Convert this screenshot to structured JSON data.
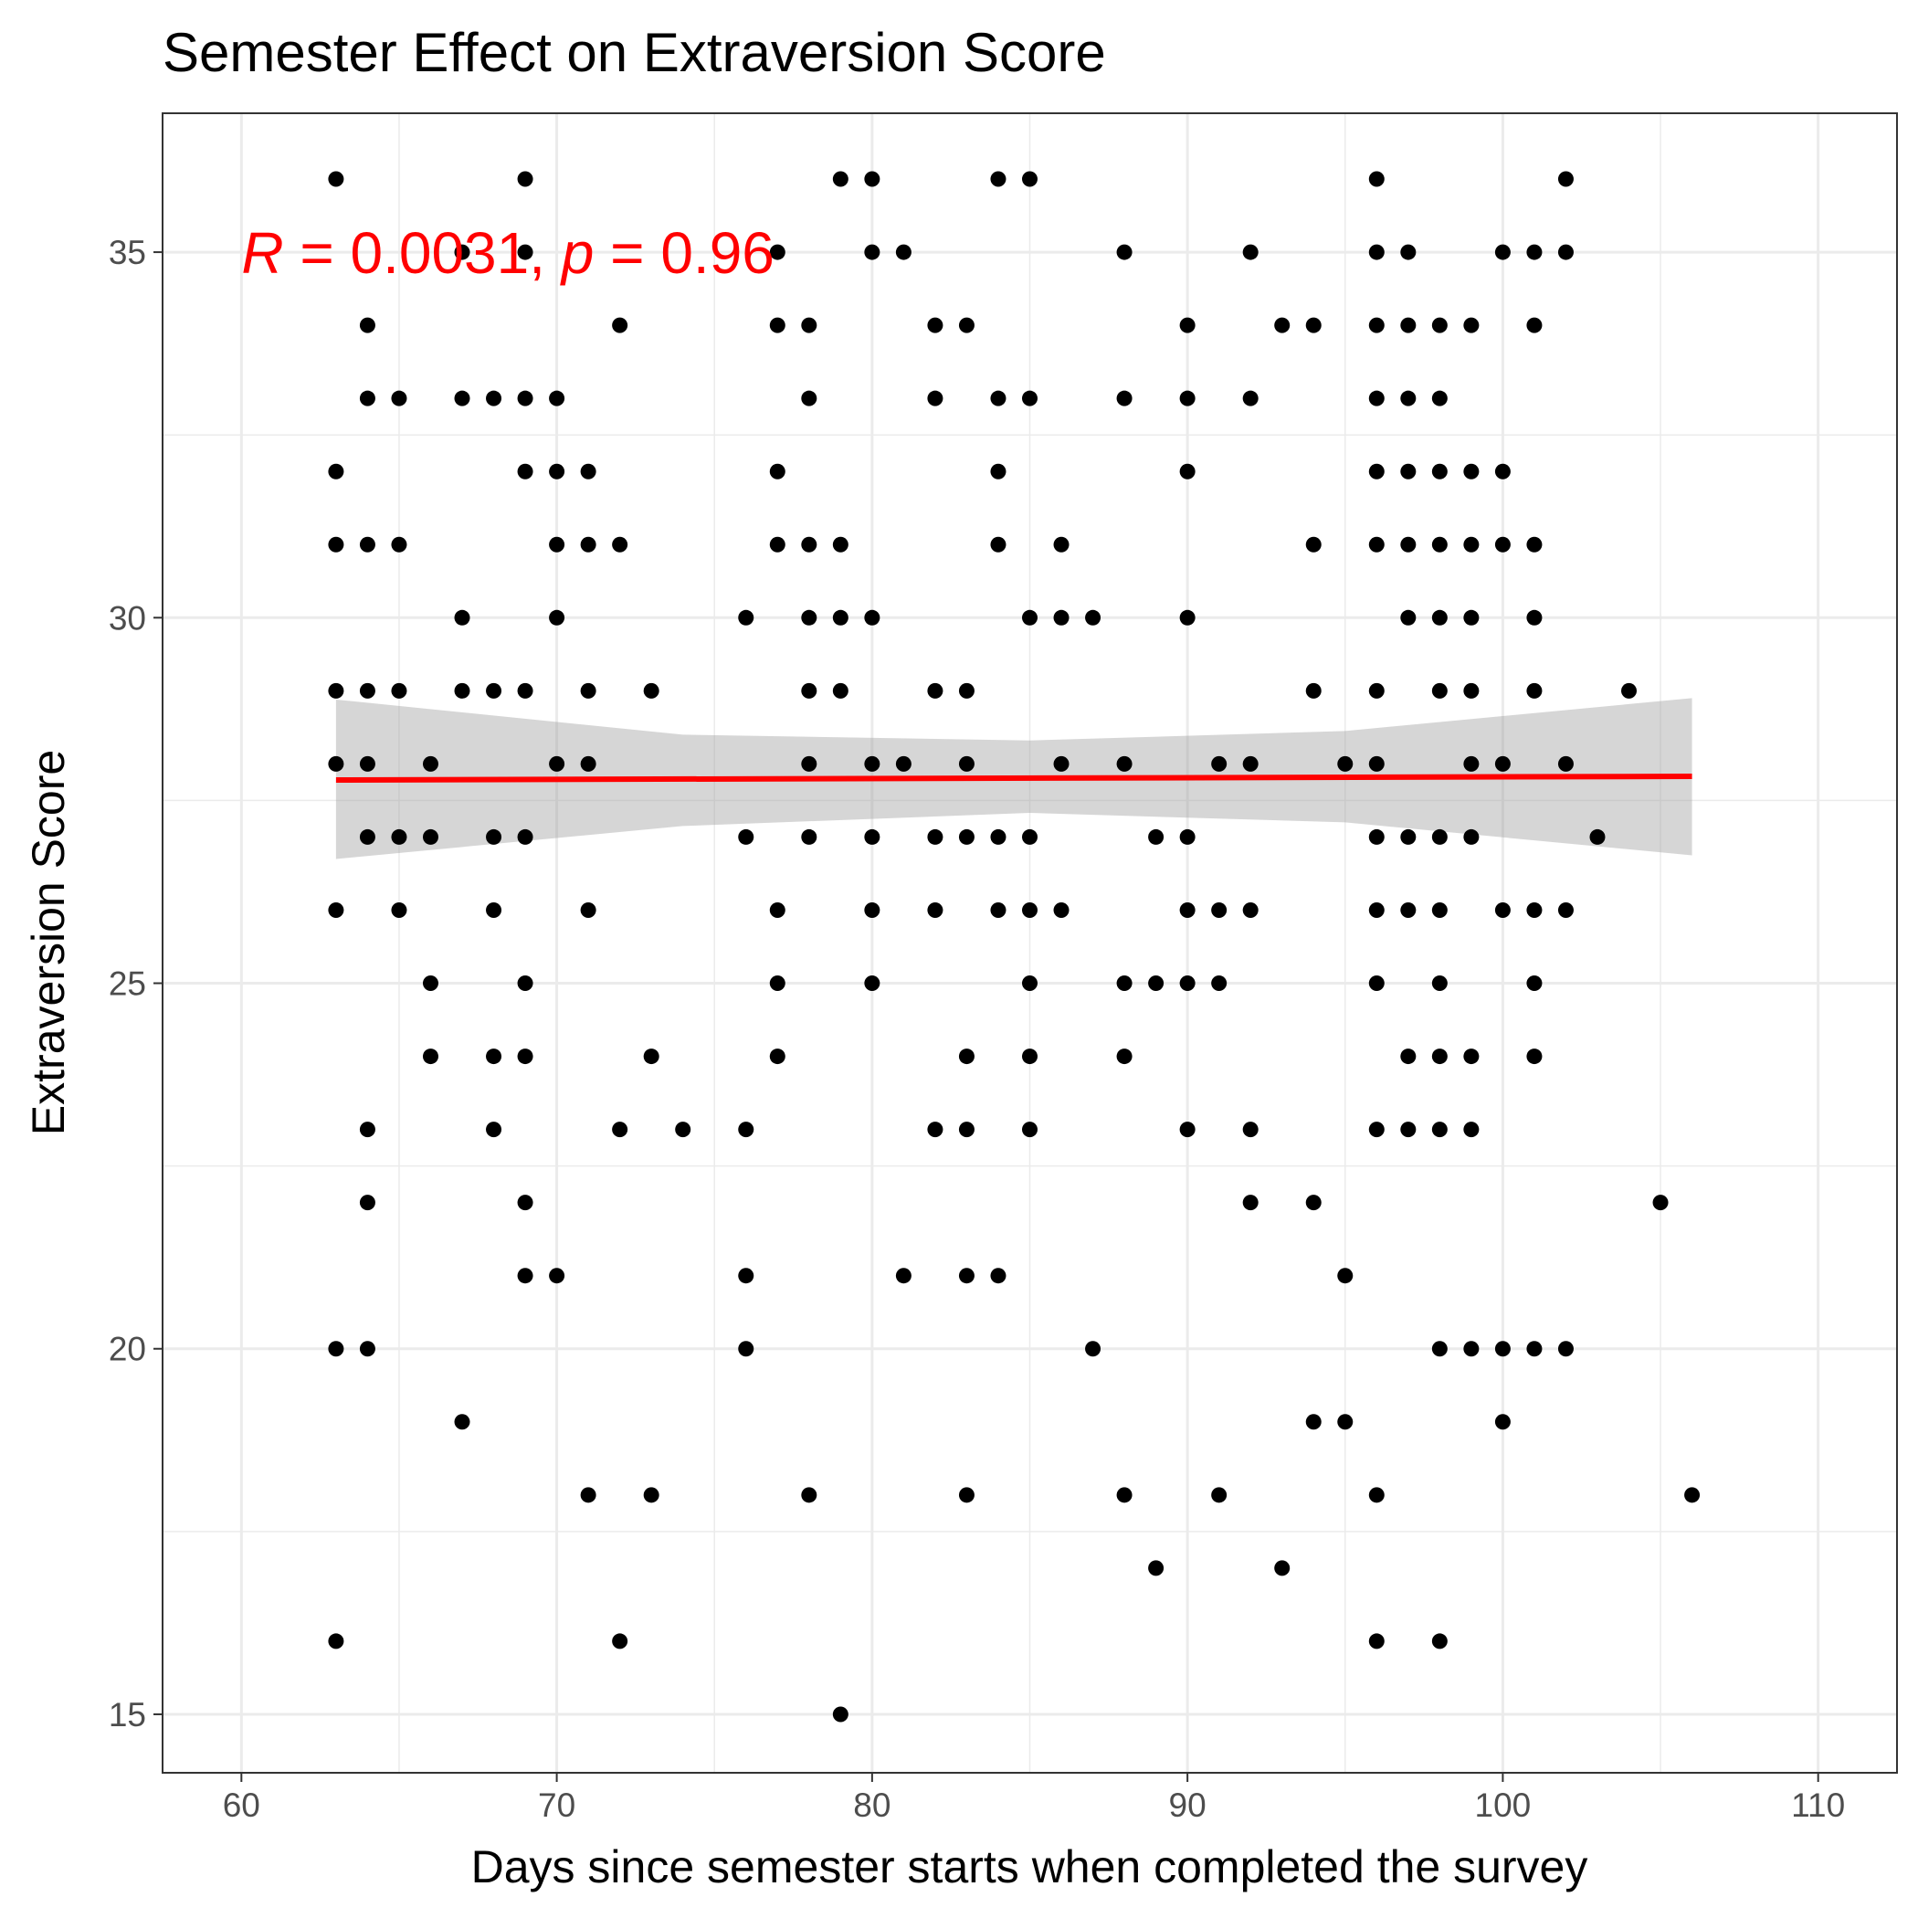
{
  "chart_data": {
    "type": "scatter",
    "title": "Semester Effect on Extraversion Score",
    "xlabel": "Days since semester starts when completed the survey",
    "ylabel": "Extraversion Score",
    "xlim": [
      57.5,
      112.5
    ],
    "ylim": [
      14.2,
      36.9
    ],
    "x_ticks": [
      "60",
      "70",
      "80",
      "90",
      "100",
      "110"
    ],
    "y_ticks": [
      "15",
      "20",
      "25",
      "30",
      "35"
    ],
    "grid": true,
    "annotation": {
      "r_symbol": "R",
      "r_text": " = 0.0031, ",
      "p_symbol": "p",
      "p_text": " = 0.96",
      "color": "#ff0000",
      "x": 60,
      "y": 35
    },
    "trend": {
      "x": [
        63,
        106
      ],
      "y": [
        27.78,
        27.83
      ],
      "color": "#ff0000",
      "band_x": [
        63,
        74,
        85,
        95,
        106
      ],
      "band_upper": [
        28.88,
        28.4,
        28.32,
        28.45,
        28.9
      ],
      "band_lower": [
        26.7,
        27.15,
        27.33,
        27.2,
        26.75
      ],
      "band_color": "#999999"
    },
    "points": [
      [
        63,
        36
      ],
      [
        63,
        32
      ],
      [
        63,
        31
      ],
      [
        63,
        29
      ],
      [
        63,
        28
      ],
      [
        63,
        26
      ],
      [
        63,
        20
      ],
      [
        63,
        16
      ],
      [
        64,
        34
      ],
      [
        64,
        33
      ],
      [
        64,
        31
      ],
      [
        64,
        29
      ],
      [
        64,
        28
      ],
      [
        64,
        27
      ],
      [
        64,
        23
      ],
      [
        64,
        22
      ],
      [
        64,
        20
      ],
      [
        65,
        33
      ],
      [
        65,
        31
      ],
      [
        65,
        29
      ],
      [
        65,
        27
      ],
      [
        65,
        26
      ],
      [
        66,
        28
      ],
      [
        66,
        27
      ],
      [
        66,
        25
      ],
      [
        66,
        24
      ],
      [
        67,
        35
      ],
      [
        67,
        33
      ],
      [
        67,
        30
      ],
      [
        67,
        29
      ],
      [
        67,
        19
      ],
      [
        68,
        33
      ],
      [
        68,
        29
      ],
      [
        68,
        27
      ],
      [
        68,
        26
      ],
      [
        68,
        24
      ],
      [
        68,
        23
      ],
      [
        69,
        36
      ],
      [
        69,
        35
      ],
      [
        69,
        33
      ],
      [
        69,
        32
      ],
      [
        69,
        29
      ],
      [
        69,
        27
      ],
      [
        69,
        25
      ],
      [
        69,
        24
      ],
      [
        69,
        22
      ],
      [
        69,
        21
      ],
      [
        70,
        33
      ],
      [
        70,
        32
      ],
      [
        70,
        31
      ],
      [
        70,
        30
      ],
      [
        70,
        28
      ],
      [
        70,
        21
      ],
      [
        71,
        32
      ],
      [
        71,
        31
      ],
      [
        71,
        29
      ],
      [
        71,
        28
      ],
      [
        71,
        26
      ],
      [
        71,
        18
      ],
      [
        72,
        34
      ],
      [
        72,
        31
      ],
      [
        72,
        23
      ],
      [
        72,
        16
      ],
      [
        73,
        29
      ],
      [
        73,
        24
      ],
      [
        73,
        18
      ],
      [
        74,
        23
      ],
      [
        76,
        30
      ],
      [
        76,
        27
      ],
      [
        76,
        23
      ],
      [
        76,
        21
      ],
      [
        76,
        20
      ],
      [
        77,
        35
      ],
      [
        77,
        34
      ],
      [
        77,
        32
      ],
      [
        77,
        31
      ],
      [
        77,
        26
      ],
      [
        77,
        25
      ],
      [
        77,
        24
      ],
      [
        78,
        34
      ],
      [
        78,
        33
      ],
      [
        78,
        31
      ],
      [
        78,
        30
      ],
      [
        78,
        29
      ],
      [
        78,
        28
      ],
      [
        78,
        27
      ],
      [
        78,
        18
      ],
      [
        79,
        36
      ],
      [
        79,
        31
      ],
      [
        79,
        30
      ],
      [
        79,
        29
      ],
      [
        79,
        15
      ],
      [
        80,
        36
      ],
      [
        80,
        35
      ],
      [
        80,
        30
      ],
      [
        80,
        28
      ],
      [
        80,
        27
      ],
      [
        80,
        26
      ],
      [
        80,
        25
      ],
      [
        81,
        35
      ],
      [
        81,
        28
      ],
      [
        81,
        21
      ],
      [
        82,
        34
      ],
      [
        82,
        33
      ],
      [
        82,
        29
      ],
      [
        82,
        27
      ],
      [
        82,
        26
      ],
      [
        82,
        23
      ],
      [
        83,
        34
      ],
      [
        83,
        29
      ],
      [
        83,
        28
      ],
      [
        83,
        27
      ],
      [
        83,
        24
      ],
      [
        83,
        23
      ],
      [
        83,
        21
      ],
      [
        83,
        18
      ],
      [
        84,
        36
      ],
      [
        84,
        33
      ],
      [
        84,
        32
      ],
      [
        84,
        31
      ],
      [
        84,
        27
      ],
      [
        84,
        26
      ],
      [
        84,
        21
      ],
      [
        85,
        36
      ],
      [
        85,
        33
      ],
      [
        85,
        30
      ],
      [
        85,
        27
      ],
      [
        85,
        26
      ],
      [
        85,
        25
      ],
      [
        85,
        24
      ],
      [
        85,
        23
      ],
      [
        86,
        31
      ],
      [
        86,
        30
      ],
      [
        86,
        28
      ],
      [
        86,
        26
      ],
      [
        87,
        30
      ],
      [
        87,
        20
      ],
      [
        88,
        35
      ],
      [
        88,
        33
      ],
      [
        88,
        28
      ],
      [
        88,
        25
      ],
      [
        88,
        24
      ],
      [
        88,
        18
      ],
      [
        89,
        27
      ],
      [
        89,
        25
      ],
      [
        89,
        17
      ],
      [
        90,
        34
      ],
      [
        90,
        33
      ],
      [
        90,
        32
      ],
      [
        90,
        30
      ],
      [
        90,
        27
      ],
      [
        90,
        26
      ],
      [
        90,
        25
      ],
      [
        90,
        23
      ],
      [
        91,
        28
      ],
      [
        91,
        26
      ],
      [
        91,
        25
      ],
      [
        91,
        18
      ],
      [
        92,
        35
      ],
      [
        92,
        33
      ],
      [
        92,
        28
      ],
      [
        92,
        26
      ],
      [
        92,
        23
      ],
      [
        92,
        22
      ],
      [
        93,
        34
      ],
      [
        93,
        17
      ],
      [
        94,
        34
      ],
      [
        94,
        31
      ],
      [
        94,
        29
      ],
      [
        94,
        22
      ],
      [
        94,
        19
      ],
      [
        95,
        28
      ],
      [
        95,
        21
      ],
      [
        95,
        19
      ],
      [
        96,
        36
      ],
      [
        96,
        35
      ],
      [
        96,
        34
      ],
      [
        96,
        33
      ],
      [
        96,
        32
      ],
      [
        96,
        31
      ],
      [
        96,
        29
      ],
      [
        96,
        28
      ],
      [
        96,
        27
      ],
      [
        96,
        26
      ],
      [
        96,
        25
      ],
      [
        96,
        23
      ],
      [
        96,
        18
      ],
      [
        96,
        16
      ],
      [
        97,
        35
      ],
      [
        97,
        34
      ],
      [
        97,
        33
      ],
      [
        97,
        32
      ],
      [
        97,
        31
      ],
      [
        97,
        30
      ],
      [
        97,
        27
      ],
      [
        97,
        26
      ],
      [
        97,
        24
      ],
      [
        97,
        23
      ],
      [
        98,
        34
      ],
      [
        98,
        33
      ],
      [
        98,
        32
      ],
      [
        98,
        31
      ],
      [
        98,
        30
      ],
      [
        98,
        29
      ],
      [
        98,
        27
      ],
      [
        98,
        26
      ],
      [
        98,
        25
      ],
      [
        98,
        24
      ],
      [
        98,
        23
      ],
      [
        98,
        20
      ],
      [
        98,
        16
      ],
      [
        99,
        34
      ],
      [
        99,
        32
      ],
      [
        99,
        31
      ],
      [
        99,
        30
      ],
      [
        99,
        29
      ],
      [
        99,
        28
      ],
      [
        99,
        27
      ],
      [
        99,
        24
      ],
      [
        99,
        23
      ],
      [
        99,
        20
      ],
      [
        100,
        35
      ],
      [
        100,
        32
      ],
      [
        100,
        31
      ],
      [
        100,
        28
      ],
      [
        100,
        26
      ],
      [
        100,
        20
      ],
      [
        100,
        19
      ],
      [
        101,
        35
      ],
      [
        101,
        34
      ],
      [
        101,
        31
      ],
      [
        101,
        30
      ],
      [
        101,
        29
      ],
      [
        101,
        26
      ],
      [
        101,
        25
      ],
      [
        101,
        24
      ],
      [
        101,
        20
      ],
      [
        102,
        36
      ],
      [
        102,
        35
      ],
      [
        102,
        28
      ],
      [
        102,
        26
      ],
      [
        102,
        20
      ],
      [
        103,
        27
      ],
      [
        104,
        29
      ],
      [
        105,
        22
      ],
      [
        106,
        18
      ]
    ]
  }
}
